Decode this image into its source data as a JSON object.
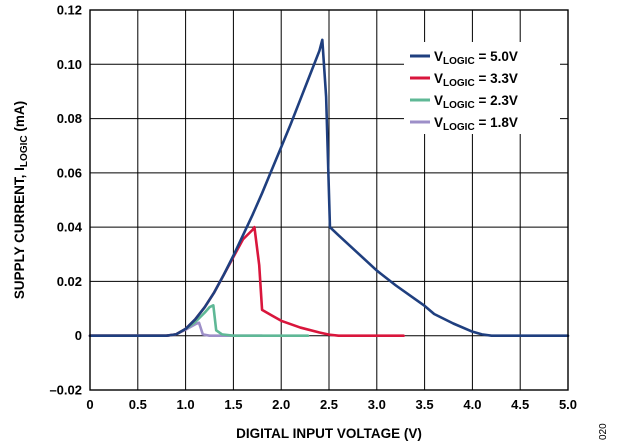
{
  "figure_number": "020",
  "chart_data": {
    "type": "line",
    "title": "",
    "xlabel": "DIGITAL INPUT VOLTAGE (V)",
    "ylabel": {
      "main": "SUPPLY CURRENT, I",
      "subscript": "LOGIC",
      "unit": " (mA)"
    },
    "xlim": [
      0,
      5.0
    ],
    "ylim": [
      -0.02,
      0.12
    ],
    "x_ticks": [
      "0",
      "0.5",
      "1.0",
      "1.5",
      "2.0",
      "2.5",
      "3.0",
      "3.5",
      "4.0",
      "4.5",
      "5.0"
    ],
    "x_tick_values": [
      0,
      0.5,
      1.0,
      1.5,
      2.0,
      2.5,
      3.0,
      3.5,
      4.0,
      4.5,
      5.0
    ],
    "y_ticks": [
      "–0.02",
      "0",
      "0.02",
      "0.04",
      "0.06",
      "0.08",
      "0.10",
      "0.12"
    ],
    "y_tick_values": [
      -0.02,
      0,
      0.02,
      0.04,
      0.06,
      0.08,
      0.1,
      0.12
    ],
    "grid": true,
    "legend_position": "top-right",
    "series": [
      {
        "name": "V_LOGIC = 5.0V",
        "legend": {
          "prefix": "V",
          "subscript": "LOGIC",
          "suffix": " = 5.0V"
        },
        "color": "#1f3f7f",
        "x": [
          0,
          0.8,
          0.9,
          1.0,
          1.1,
          1.2,
          1.3,
          1.4,
          1.5,
          1.6,
          1.7,
          1.8,
          1.9,
          2.0,
          2.1,
          2.2,
          2.3,
          2.4,
          2.43,
          2.47,
          2.51,
          2.6,
          2.8,
          3.0,
          3.2,
          3.4,
          3.5,
          3.6,
          3.8,
          4.0,
          4.1,
          4.2,
          4.5,
          5.0
        ],
        "y": [
          0,
          0,
          0.0005,
          0.0025,
          0.006,
          0.0105,
          0.016,
          0.0225,
          0.0295,
          0.037,
          0.0445,
          0.0525,
          0.061,
          0.0695,
          0.078,
          0.087,
          0.096,
          0.105,
          0.109,
          0.088,
          0.04,
          0.037,
          0.0305,
          0.024,
          0.0185,
          0.0135,
          0.011,
          0.008,
          0.0045,
          0.0015,
          0.0005,
          0,
          0,
          0
        ]
      },
      {
        "name": "V_LOGIC = 3.3V",
        "legend": {
          "prefix": "V",
          "subscript": "LOGIC",
          "suffix": " = 3.3V"
        },
        "color": "#d9163c",
        "x": [
          0,
          0.8,
          0.9,
          1.0,
          1.1,
          1.2,
          1.3,
          1.4,
          1.5,
          1.6,
          1.7,
          1.72,
          1.77,
          1.8,
          1.9,
          2.0,
          2.2,
          2.4,
          2.5,
          2.6,
          3.28
        ],
        "y": [
          0,
          0,
          0.0005,
          0.0025,
          0.006,
          0.0105,
          0.016,
          0.0225,
          0.029,
          0.0355,
          0.039,
          0.04,
          0.026,
          0.0095,
          0.0075,
          0.0055,
          0.003,
          0.0012,
          0.0004,
          0,
          0
        ]
      },
      {
        "name": "V_LOGIC = 2.3V",
        "legend": {
          "prefix": "V",
          "subscript": "LOGIC",
          "suffix": " = 2.3V"
        },
        "color": "#5fb896",
        "x": [
          0,
          0.8,
          0.9,
          1.0,
          1.1,
          1.2,
          1.25,
          1.29,
          1.32,
          1.38,
          1.5,
          2.28
        ],
        "y": [
          0,
          0,
          0.0005,
          0.0025,
          0.005,
          0.0085,
          0.0105,
          0.0112,
          0.002,
          0.0005,
          0,
          0
        ]
      },
      {
        "name": "V_LOGIC = 1.8V",
        "legend": {
          "prefix": "V",
          "subscript": "LOGIC",
          "suffix": " = 1.8V"
        },
        "color": "#9d8fc8",
        "x": [
          0,
          0.8,
          0.9,
          1.0,
          1.05,
          1.1,
          1.14,
          1.18,
          1.25,
          1.8
        ],
        "y": [
          0,
          0,
          0.0005,
          0.0022,
          0.0032,
          0.0042,
          0.0048,
          0.0005,
          0,
          0
        ]
      }
    ]
  }
}
